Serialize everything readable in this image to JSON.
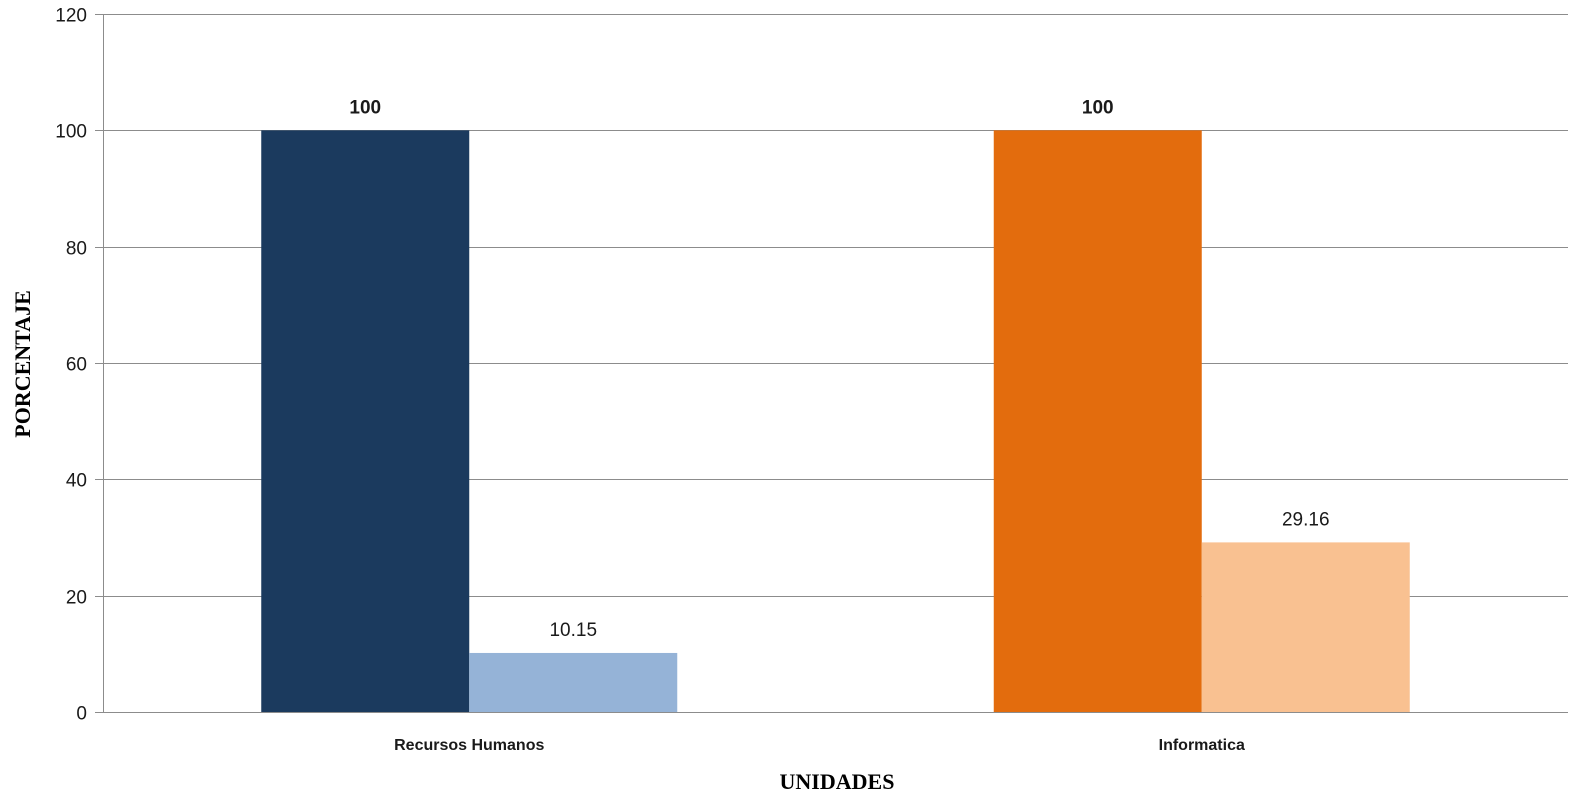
{
  "chart_data": {
    "type": "bar",
    "categories": [
      "Recursos Humanos",
      "Informatica"
    ],
    "series": [
      {
        "values": [
          100,
          100
        ],
        "colors": [
          "#1b3a5e",
          "#e36c0d"
        ],
        "labels": [
          "100",
          "100"
        ],
        "label_bold": true
      },
      {
        "values": [
          10.15,
          29.16
        ],
        "colors": [
          "#95b3d7",
          "#f9c191"
        ],
        "labels": [
          "10.15",
          "29.16"
        ],
        "label_bold": false
      }
    ],
    "title": "",
    "xlabel": "UNIDADES",
    "ylabel": "PORCENTAJE",
    "ylim": [
      0,
      120
    ],
    "yticks": [
      0,
      20,
      40,
      60,
      80,
      100,
      120
    ],
    "ytick_labels": [
      "0",
      "20",
      "40",
      "60",
      "80",
      "100",
      "120"
    ],
    "grid": true,
    "legend": "none"
  }
}
